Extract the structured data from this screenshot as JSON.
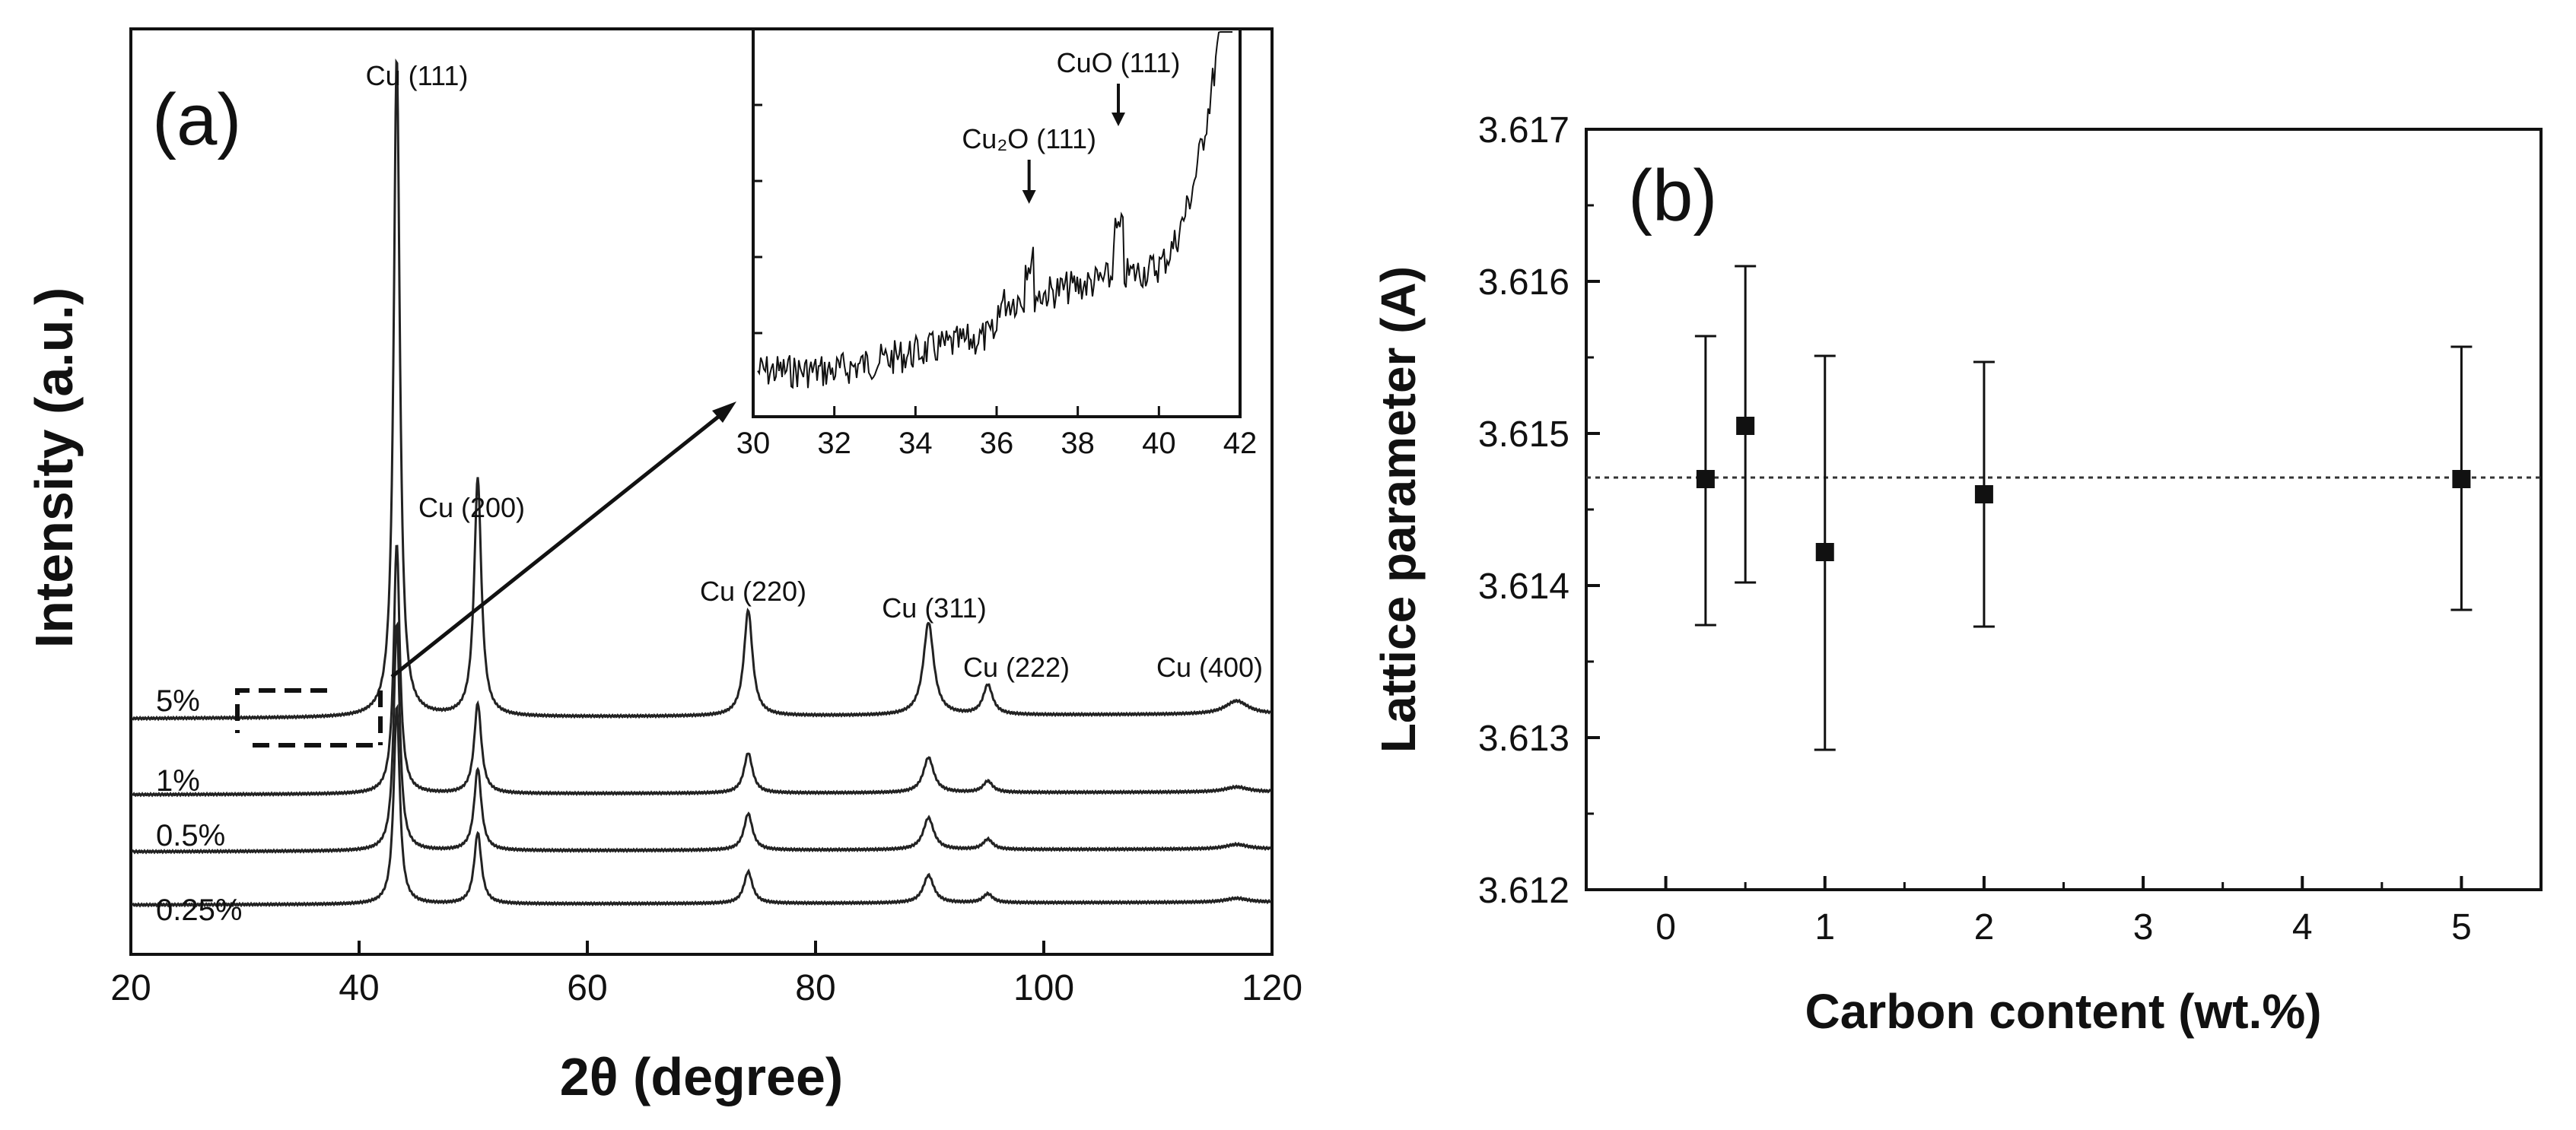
{
  "chart_data": [
    {
      "type": "line",
      "panel_label": "(a)",
      "title": "",
      "xlabel": "2θ (degree)",
      "ylabel": "Intensity (a.u.)",
      "xlim": [
        20,
        120
      ],
      "x_ticks": [
        "20",
        "40",
        "60",
        "80",
        "100",
        "120"
      ],
      "peaks": [
        {
          "label": "Cu (111)",
          "two_theta": 43.3,
          "relative_height": 1.0
        },
        {
          "label": "Cu (200)",
          "two_theta": 50.4,
          "relative_height": 0.36
        },
        {
          "label": "Cu (220)",
          "two_theta": 74.1,
          "relative_height": 0.16
        },
        {
          "label": "Cu (311)",
          "two_theta": 89.9,
          "relative_height": 0.14
        },
        {
          "label": "Cu (222)",
          "two_theta": 95.1,
          "relative_height": 0.045
        },
        {
          "label": "Cu (400)",
          "two_theta": 116.9,
          "relative_height": 0.02
        }
      ],
      "series": [
        {
          "name": "5%",
          "label": "5%"
        },
        {
          "name": "1%",
          "label": "1%"
        },
        {
          "name": "0.5%",
          "label": "0.5%"
        },
        {
          "name": "0.25%",
          "label": "0.25%"
        }
      ],
      "inset": {
        "xlim": [
          30,
          42
        ],
        "x_ticks": [
          "30",
          "32",
          "34",
          "36",
          "38",
          "40",
          "42"
        ],
        "annotations": [
          {
            "label": "Cu₂O (111)",
            "two_theta": 36.8
          },
          {
            "label": "CuO (111)",
            "two_theta": 39.0
          }
        ]
      }
    },
    {
      "type": "scatter",
      "panel_label": "(b)",
      "title": "",
      "xlabel": "Carbon content (wt.%)",
      "ylabel": "Lattice parameter (A)",
      "xlim": [
        -0.5,
        5.5
      ],
      "ylim": [
        3.612,
        3.617
      ],
      "x_ticks": [
        "0",
        "1",
        "2",
        "3",
        "4",
        "5"
      ],
      "y_ticks": [
        "3.612",
        "3.613",
        "3.614",
        "3.615",
        "3.616",
        "3.617"
      ],
      "x": [
        0.25,
        0.5,
        1,
        2,
        5
      ],
      "y": [
        3.6147,
        3.61505,
        3.61422,
        3.6146,
        3.6147
      ],
      "error_low": [
        3.61374,
        3.61402,
        3.61292,
        3.61373,
        3.61384
      ],
      "error_high": [
        3.61564,
        3.6161,
        3.61551,
        3.61547,
        3.61557
      ],
      "reference_line": 3.61471
    }
  ]
}
